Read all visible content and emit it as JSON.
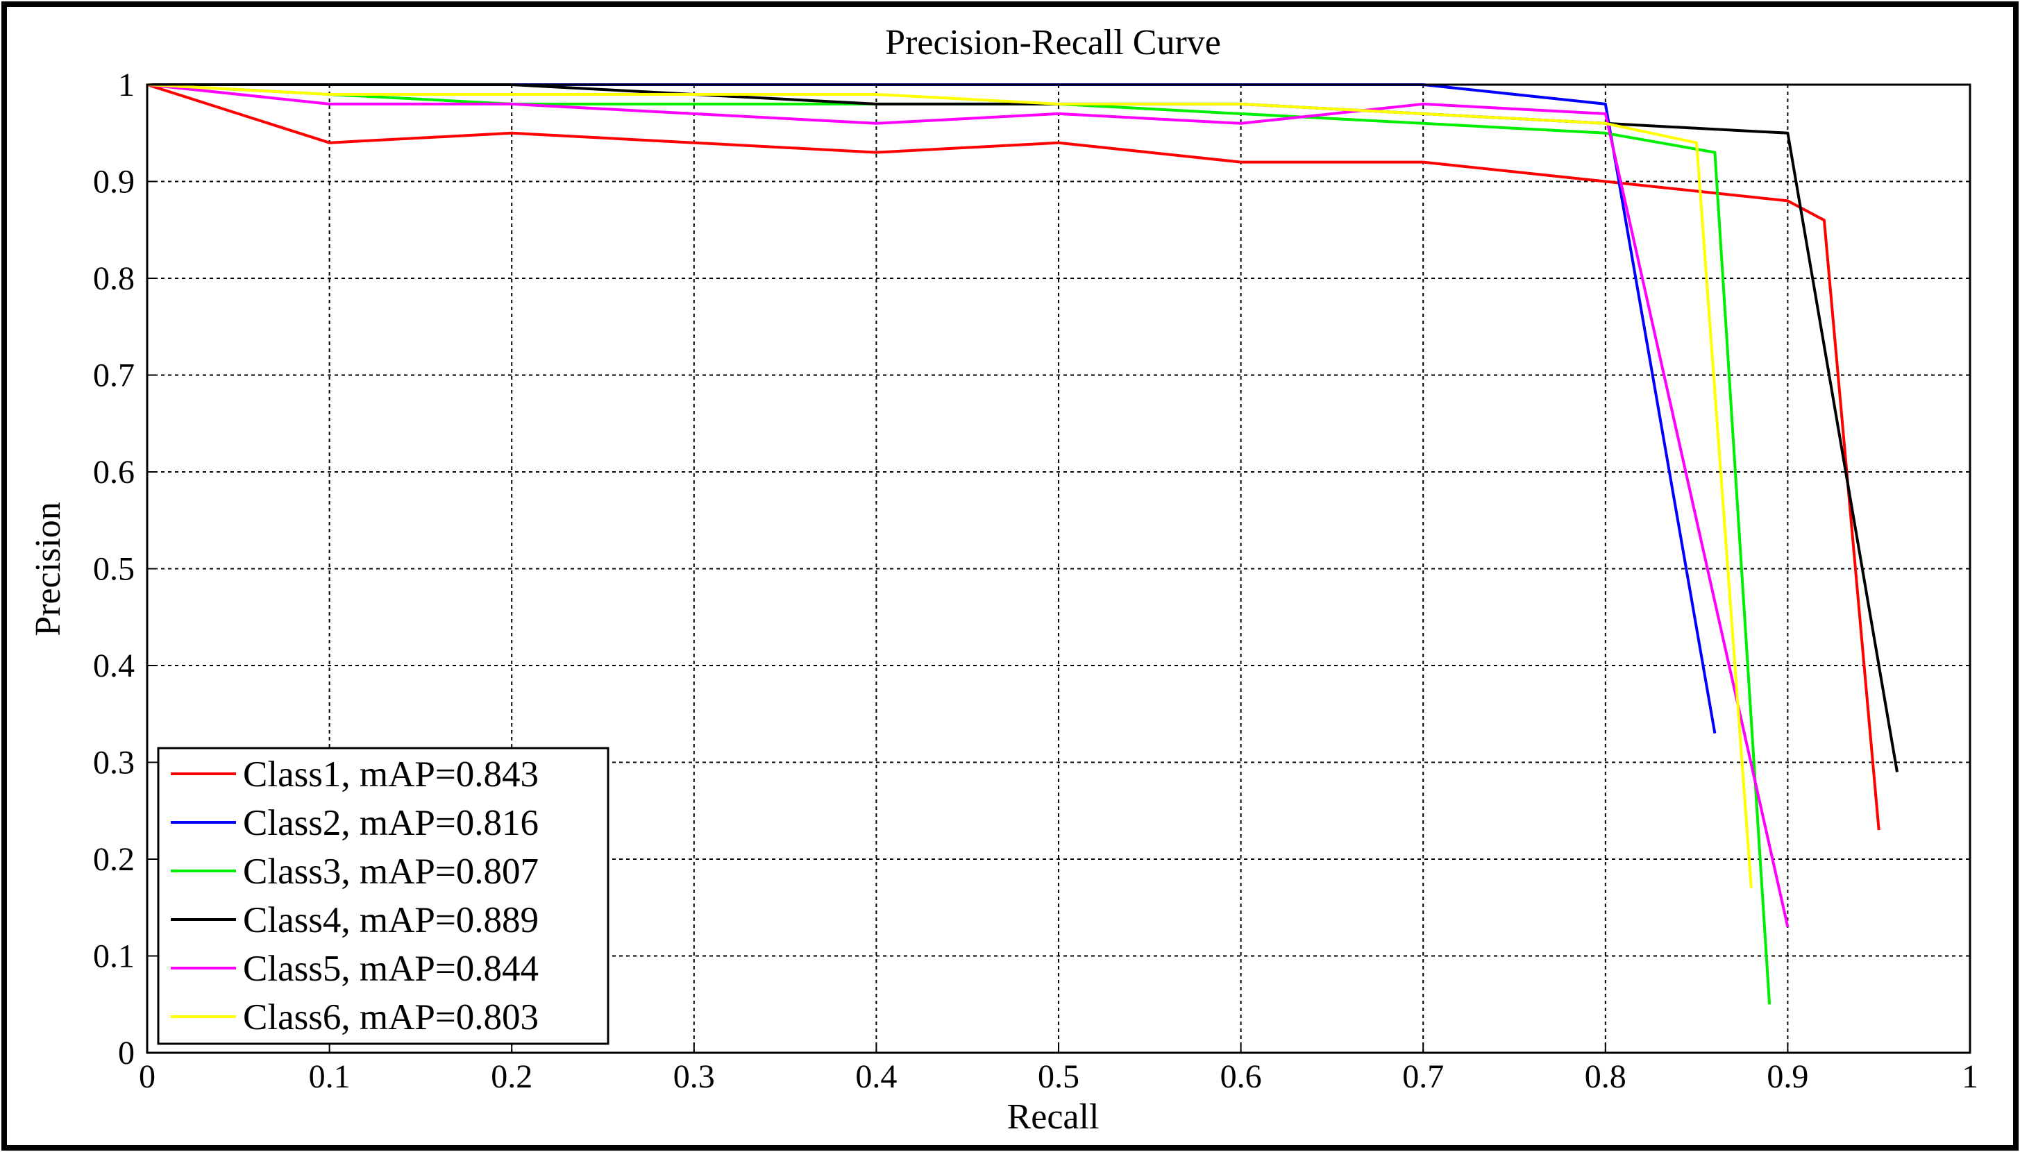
{
  "chart_data": {
    "type": "line",
    "title": "Precision-Recall Curve",
    "xlabel": "Recall",
    "ylabel": "Precision",
    "xlim": [
      0,
      1
    ],
    "ylim": [
      0,
      1
    ],
    "grid": true,
    "legend_position": "bottom-left",
    "x_ticks": [
      "0",
      "0.1",
      "0.2",
      "0.3",
      "0.4",
      "0.5",
      "0.6",
      "0.7",
      "0.8",
      "0.9",
      "1"
    ],
    "y_ticks": [
      "0",
      "0.1",
      "0.2",
      "0.3",
      "0.4",
      "0.5",
      "0.6",
      "0.7",
      "0.8",
      "0.9",
      "1"
    ],
    "series": [
      {
        "name": "Class1, mAP=0.843",
        "color": "#ff0000",
        "x": [
          0,
          0.1,
          0.2,
          0.3,
          0.4,
          0.5,
          0.6,
          0.7,
          0.8,
          0.9,
          0.92,
          0.95
        ],
        "y": [
          1.0,
          0.94,
          0.95,
          0.94,
          0.93,
          0.94,
          0.92,
          0.92,
          0.9,
          0.88,
          0.86,
          0.23
        ]
      },
      {
        "name": "Class2, mAP=0.816",
        "color": "#0000ff",
        "x": [
          0,
          0.1,
          0.2,
          0.3,
          0.4,
          0.5,
          0.6,
          0.7,
          0.8,
          0.86
        ],
        "y": [
          1.0,
          1.0,
          1.0,
          1.0,
          1.0,
          1.0,
          1.0,
          1.0,
          0.98,
          0.33
        ]
      },
      {
        "name": "Class3, mAP=0.807",
        "color": "#00ee00",
        "x": [
          0,
          0.1,
          0.2,
          0.3,
          0.4,
          0.5,
          0.6,
          0.7,
          0.8,
          0.86,
          0.89
        ],
        "y": [
          1.0,
          0.99,
          0.98,
          0.98,
          0.98,
          0.98,
          0.97,
          0.96,
          0.95,
          0.93,
          0.05
        ]
      },
      {
        "name": "Class4, mAP=0.889",
        "color": "#000000",
        "x": [
          0,
          0.1,
          0.2,
          0.3,
          0.4,
          0.5,
          0.6,
          0.7,
          0.8,
          0.9,
          0.96
        ],
        "y": [
          1.0,
          1.0,
          1.0,
          0.99,
          0.98,
          0.98,
          0.98,
          0.97,
          0.96,
          0.95,
          0.29
        ]
      },
      {
        "name": "Class5, mAP=0.844",
        "color": "#ff00ff",
        "x": [
          0,
          0.1,
          0.2,
          0.3,
          0.4,
          0.5,
          0.6,
          0.7,
          0.8,
          0.9
        ],
        "y": [
          1.0,
          0.98,
          0.98,
          0.97,
          0.96,
          0.97,
          0.96,
          0.98,
          0.97,
          0.13
        ]
      },
      {
        "name": "Class6, mAP=0.803",
        "color": "#ffff00",
        "x": [
          0,
          0.1,
          0.2,
          0.3,
          0.4,
          0.5,
          0.6,
          0.7,
          0.8,
          0.85,
          0.88
        ],
        "y": [
          1.0,
          0.99,
          0.99,
          0.99,
          0.99,
          0.98,
          0.98,
          0.97,
          0.96,
          0.94,
          0.17
        ]
      }
    ]
  }
}
